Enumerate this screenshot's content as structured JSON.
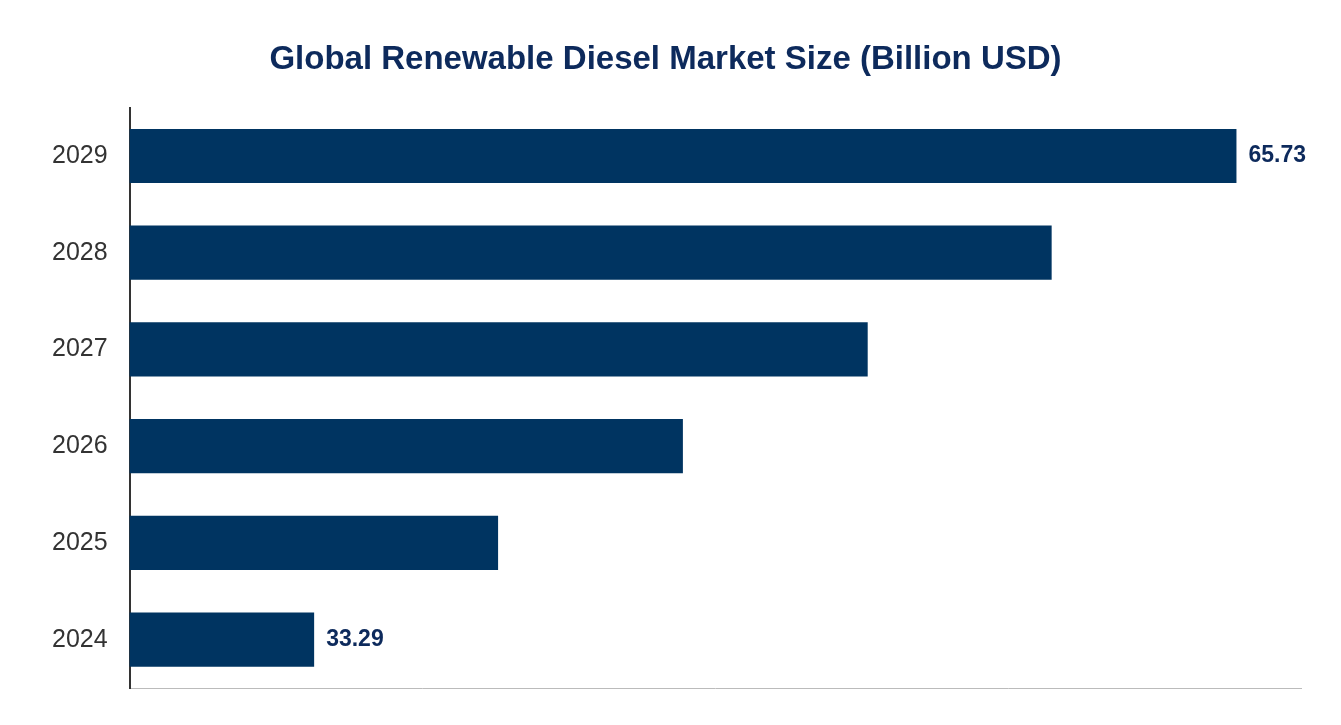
{
  "chart_data": {
    "type": "bar",
    "orientation": "horizontal",
    "title": "Global Renewable Diesel Market Size (Billion USD)",
    "categories": [
      "2029",
      "2028",
      "2027",
      "2026",
      "2025",
      "2024"
    ],
    "values": [
      65.73,
      59.23,
      52.76,
      46.26,
      39.76,
      33.29
    ],
    "value_labels": [
      "65.73",
      null,
      null,
      null,
      null,
      "33.29"
    ],
    "data_labels": true,
    "color": "#003461",
    "xlim": [
      26.8,
      68
    ],
    "xticks": [],
    "grid": false,
    "tick_labels": "y"
  }
}
